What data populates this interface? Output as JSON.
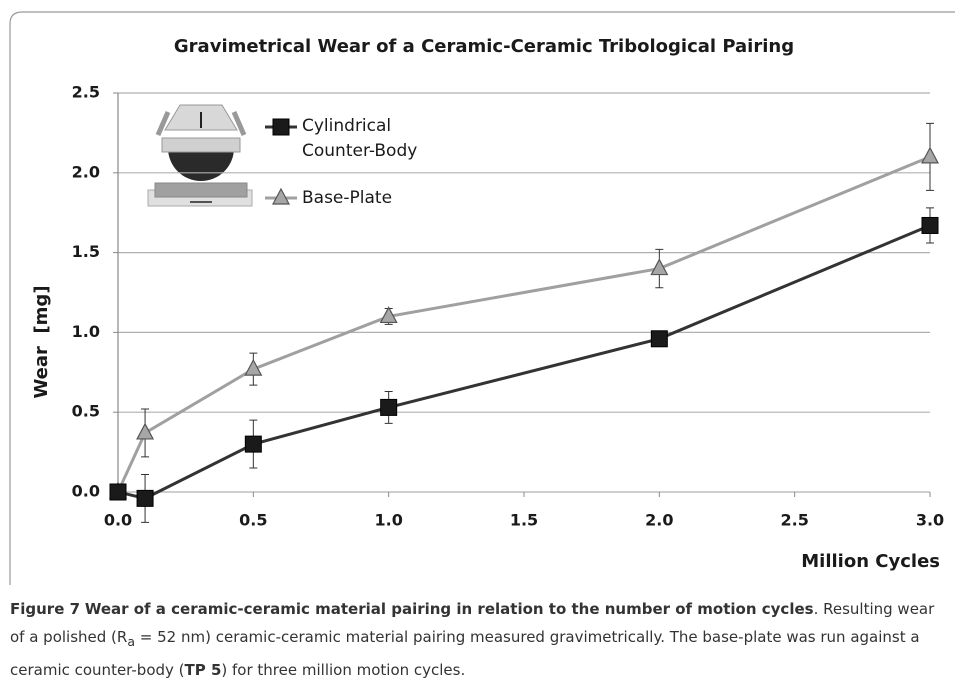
{
  "chart_data": {
    "type": "line",
    "title": "Gravimetrical Wear of a Ceramic-Ceramic Tribological Pairing",
    "x_label": "Million Cycles",
    "y_label": "Wear  [mg]",
    "x": [
      0,
      0.1,
      0.5,
      1.0,
      2.0,
      3.0
    ],
    "series": [
      {
        "name": "Cylindrical Counter-Body",
        "color": "#1a1a1a",
        "marker": "square",
        "values": [
          0,
          -0.04,
          0.3,
          0.53,
          0.96,
          1.67
        ],
        "errors": [
          0,
          0.15,
          0.15,
          0.1,
          0.03,
          0.11
        ]
      },
      {
        "name": "Base-Plate",
        "color": "#a6a6a6",
        "marker": "triangle",
        "values": [
          0,
          0.37,
          0.77,
          1.1,
          1.4,
          2.1
        ],
        "errors": [
          0,
          0.15,
          0.1,
          0.05,
          0.12,
          0.21
        ]
      }
    ],
    "xlim": [
      0,
      3
    ],
    "ylim": [
      0,
      2.5
    ],
    "xticks": [
      {
        "value": 0,
        "label": "0.0"
      },
      0.5,
      {
        "value": 1,
        "label": "1.0"
      },
      1.5,
      {
        "value": 2,
        "label": "2.0"
      },
      2.5,
      {
        "value": 3,
        "label": "3.0"
      }
    ],
    "yticks": [
      {
        "value": 0,
        "label": "0.0"
      },
      0.5,
      {
        "value": 1,
        "label": "1.0"
      },
      1.5,
      {
        "value": 2,
        "label": "2.0"
      },
      2.5
    ],
    "grid": true
  },
  "caption": {
    "label": "Figure 7",
    "title": "Wear of a ceramic-ceramic material pairing in relation to the number of motion cycles",
    "text_1": "Resulting wear of a polished (R",
    "subscript": "a",
    "text_2": " = 52 nm) ceramic-ceramic material pairing measured gravimetrically. The base-plate was run against a ceramic counter-body (",
    "bold": "TP 5",
    "text_3": ") for three million motion cycles."
  }
}
